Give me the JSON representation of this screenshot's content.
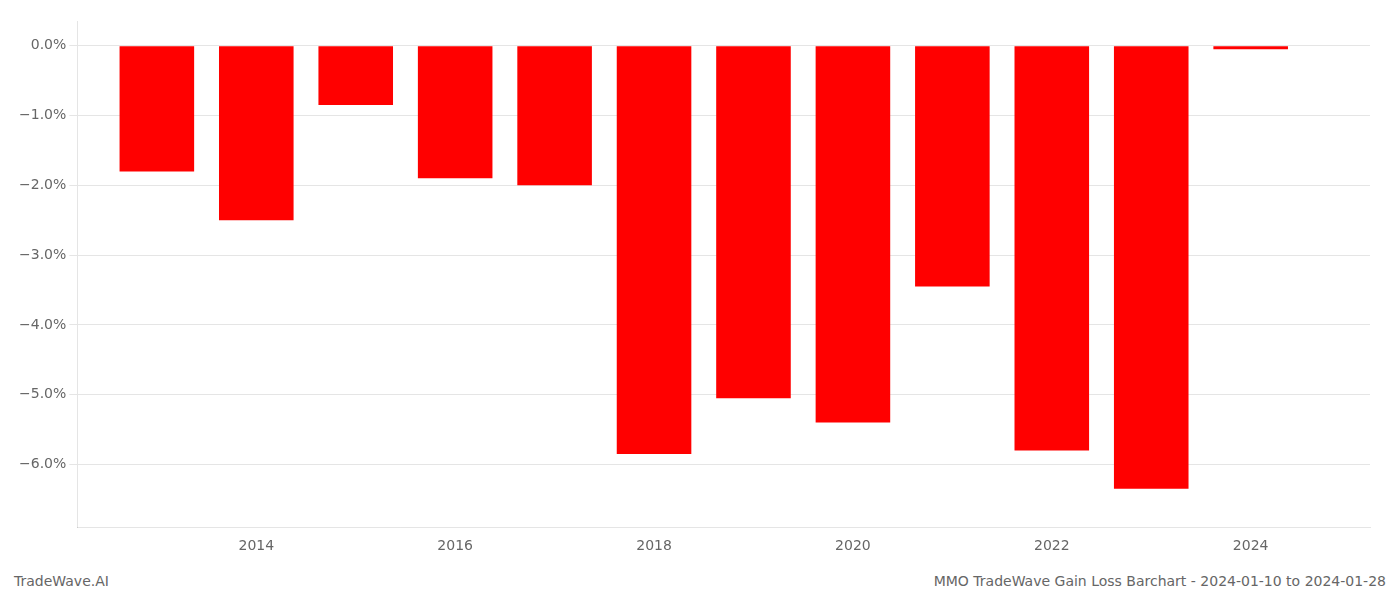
{
  "chart_data": {
    "type": "bar",
    "x": [
      2013,
      2014,
      2015,
      2016,
      2017,
      2018,
      2019,
      2020,
      2021,
      2022,
      2023,
      2024
    ],
    "values": [
      -1.8,
      -2.5,
      -0.85,
      -1.9,
      -2.0,
      -5.85,
      -5.05,
      -5.4,
      -3.45,
      -5.8,
      -6.35,
      -0.05
    ],
    "color": "#ff0000",
    "xlim": [
      2012.2,
      2025.2
    ],
    "xticks": [
      2014,
      2016,
      2018,
      2020,
      2022,
      2024
    ],
    "ylim": [
      -6.9,
      0.35
    ],
    "yticks": [
      {
        "value": 0.0,
        "label": "0.0%"
      },
      {
        "value": -1.0,
        "label": "−1.0%"
      },
      {
        "value": -2.0,
        "label": "−2.0%"
      },
      {
        "value": -3.0,
        "label": "−3.0%"
      },
      {
        "value": -4.0,
        "label": "−4.0%"
      },
      {
        "value": -5.0,
        "label": "−5.0%"
      },
      {
        "value": -6.0,
        "label": "−6.0%"
      }
    ],
    "grid": "y",
    "annotations": [
      "TradeWave.AI",
      "MMO TradeWave Gain Loss Barchart - 2024-01-10 to 2024-01-28"
    ]
  }
}
